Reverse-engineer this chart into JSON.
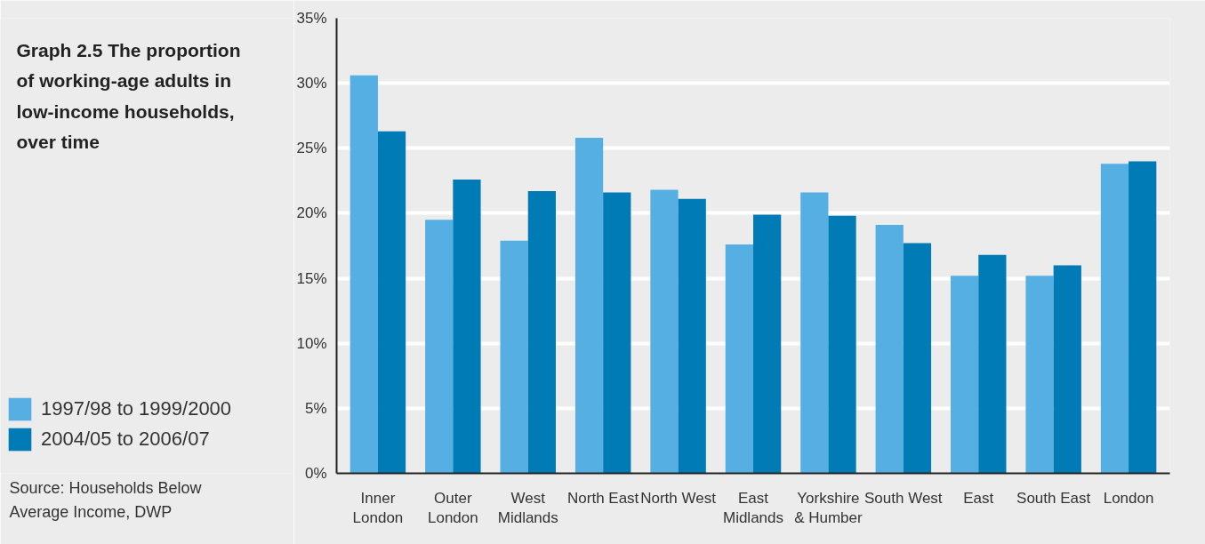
{
  "chart_data": {
    "type": "bar",
    "title": "Graph 2.5 The proportion of working-age adults in low-income households, over time",
    "categories": [
      "Inner London",
      "Outer London",
      "West Midlands",
      "North East",
      "North West",
      "East Midlands",
      "Yorkshire & Humber",
      "South West",
      "East",
      "South East",
      "London"
    ],
    "series": [
      {
        "name": "1997/98 to 1999/2000",
        "color": "#55afe3",
        "values": [
          30.6,
          19.5,
          17.9,
          25.8,
          21.8,
          17.6,
          21.6,
          19.1,
          15.2,
          15.2,
          23.8
        ]
      },
      {
        "name": "2004/05 to 2006/07",
        "color": "#007bb6",
        "values": [
          26.3,
          22.6,
          21.7,
          21.6,
          21.1,
          19.9,
          19.8,
          17.7,
          16.8,
          16.0,
          24.0
        ]
      }
    ],
    "ylim": [
      0,
      35
    ],
    "yticks": [
      {
        "value": 0,
        "label": "0%"
      },
      {
        "value": 5,
        "label": "5%"
      },
      {
        "value": 10,
        "label": "10%"
      },
      {
        "value": 15,
        "label": "15%"
      },
      {
        "value": 20,
        "label": "20%"
      },
      {
        "value": 25,
        "label": "25%"
      },
      {
        "value": 30,
        "label": "30%"
      },
      {
        "value": 35,
        "label": "35%"
      }
    ],
    "grid": "y",
    "legend": "bottom left",
    "annotations": [
      "Source: Households Below Average Income, DWP"
    ]
  }
}
